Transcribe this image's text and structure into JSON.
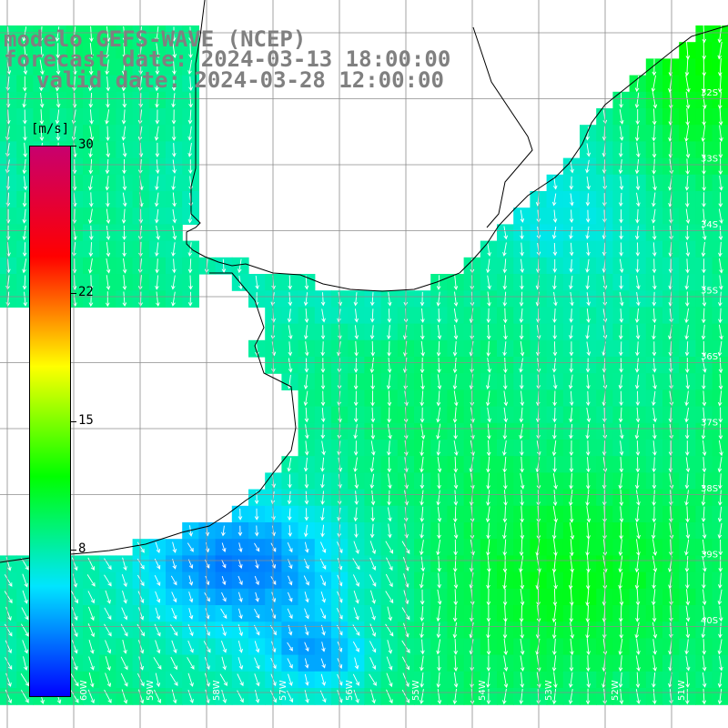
{
  "title": {
    "model": "modelo GEFS-WAVE (NCEP)",
    "forecast": "forecast date: 2024-03-13 18:00:00",
    "valid": "valid date: 2024-03-28 12:00:00"
  },
  "colorbar": {
    "unit": "[m/s]",
    "min": 0,
    "max": 30,
    "ticks": [
      {
        "value": 30,
        "label": "30"
      },
      {
        "value": 22,
        "label": "22"
      },
      {
        "value": 15,
        "label": "15"
      },
      {
        "value": 8,
        "label": "8"
      }
    ],
    "stops": [
      "#0000ff",
      "#00e5ff",
      "#00ff00",
      "#ffff00",
      "#ff0000",
      "#c8006e"
    ]
  },
  "map": {
    "lat_labels": [
      "32S",
      "33S",
      "34S",
      "35S",
      "36S",
      "37S",
      "38S",
      "39S",
      "40S"
    ],
    "lon_labels": [
      "60W",
      "59W",
      "58W",
      "57W",
      "56W",
      "55W",
      "54W",
      "53W",
      "52W",
      "51W"
    ],
    "wind_direction": "from north (southward arrows)",
    "colors": {
      "land": "#ffffff",
      "grid": "#8c8c8c",
      "coast": "#000000",
      "arrow": "#ffffff"
    }
  }
}
